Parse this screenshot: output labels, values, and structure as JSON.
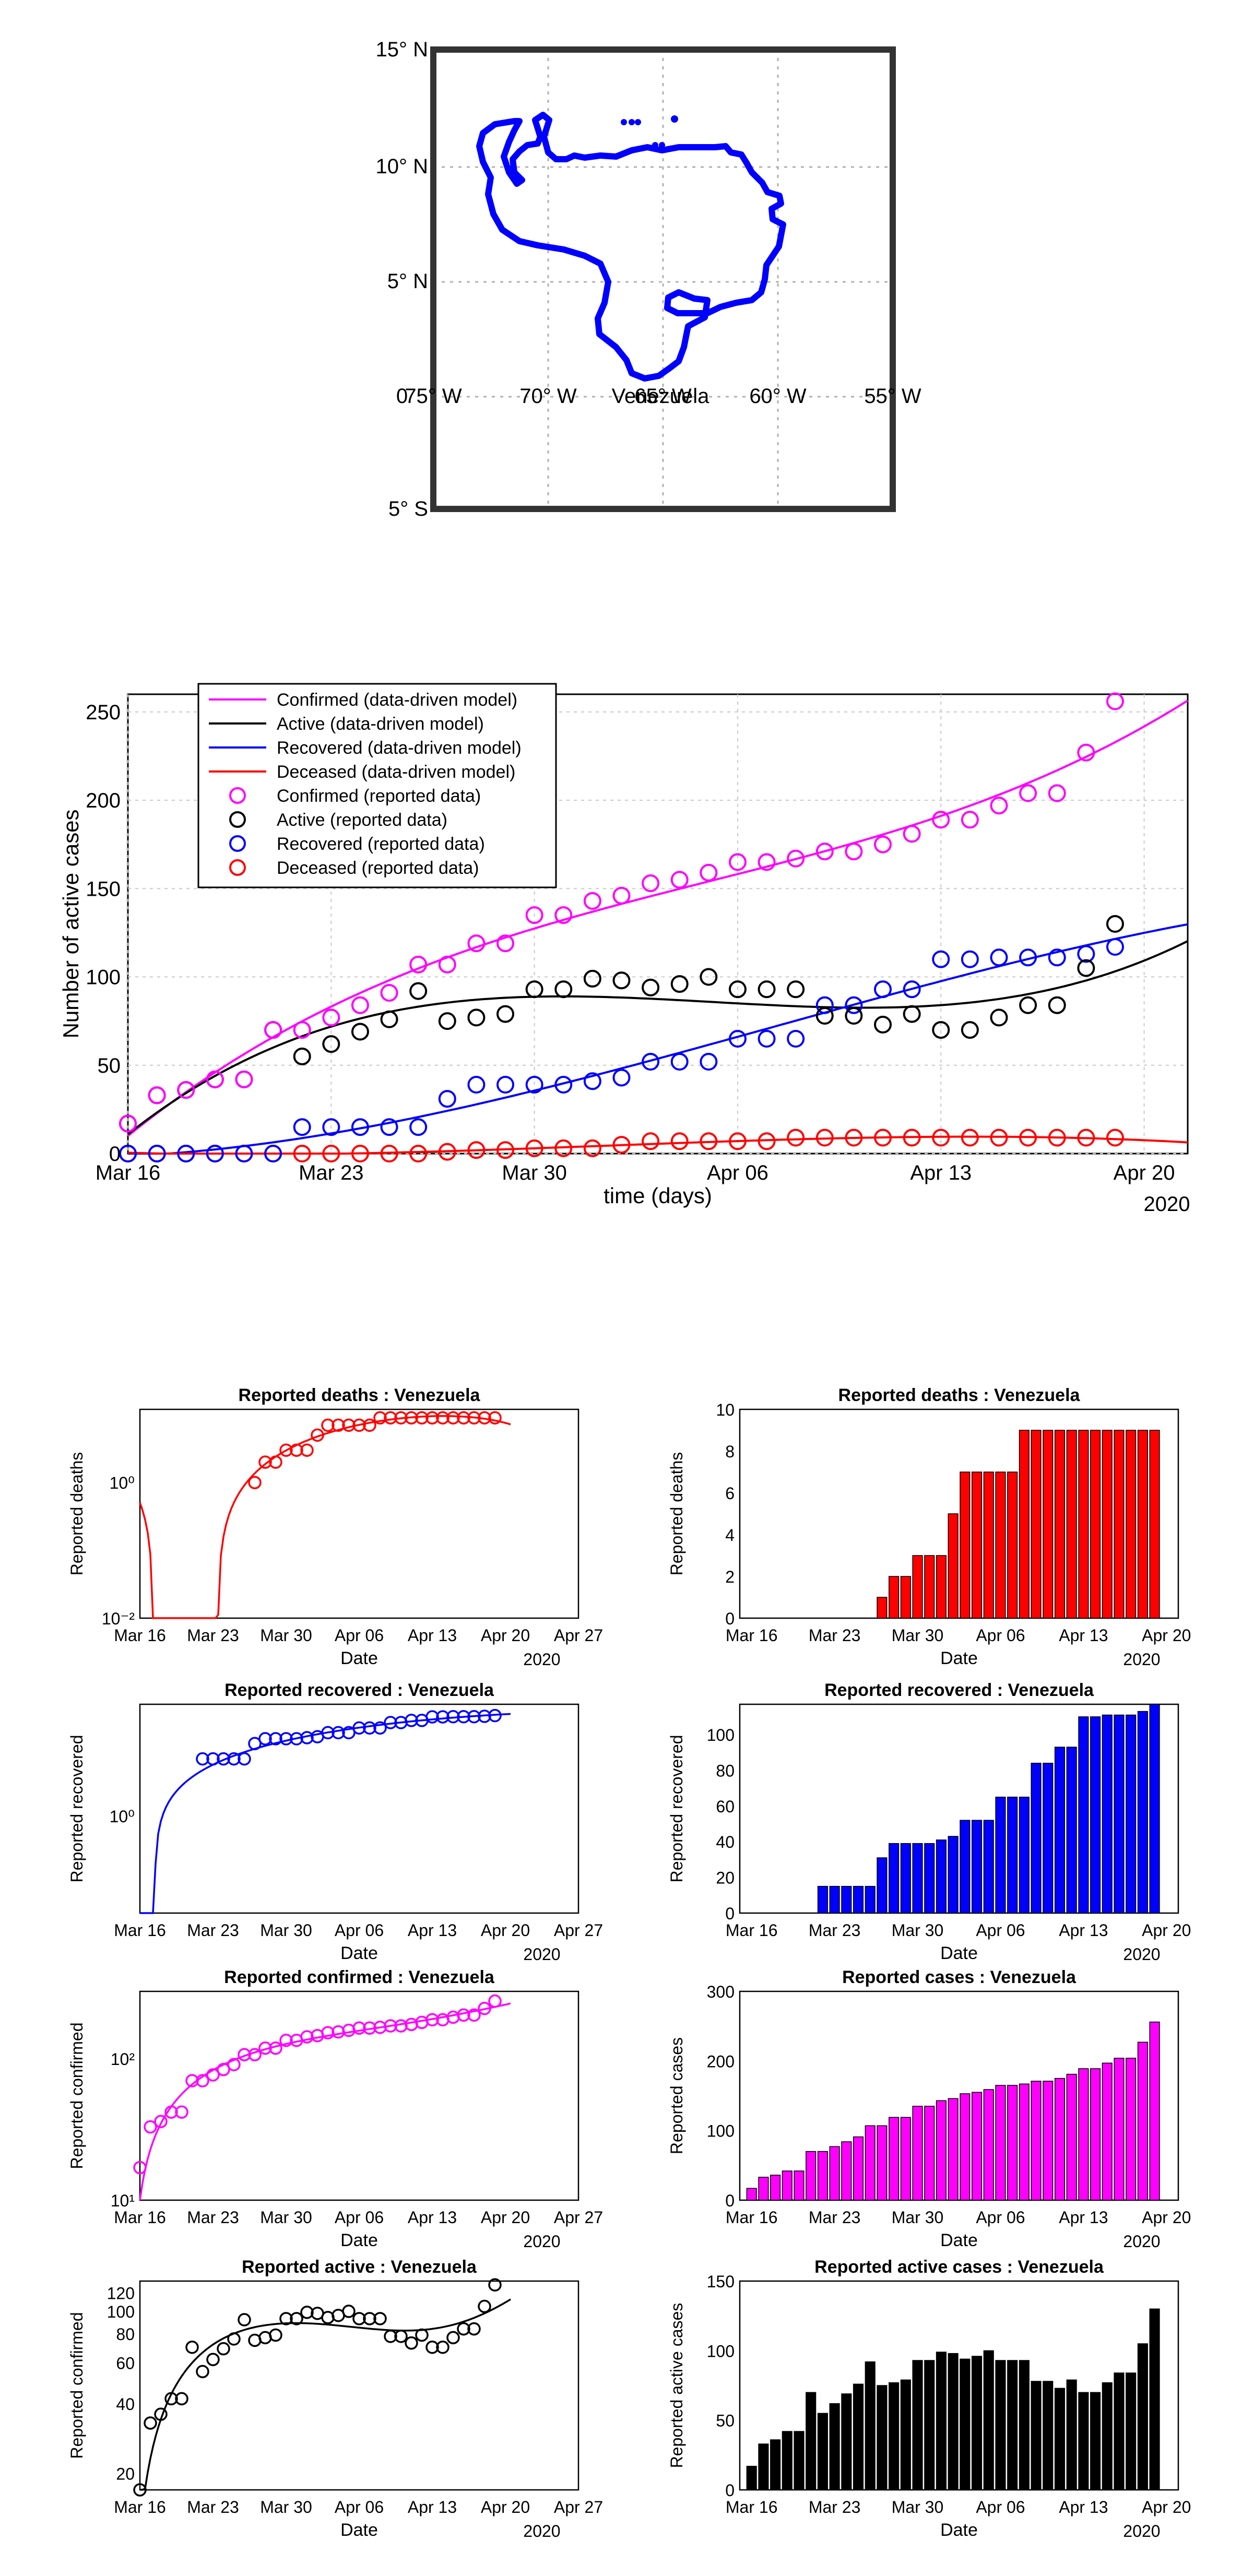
{
  "map": {
    "title": "Venezuela",
    "lat_ticks": [
      "15° N",
      "10° N",
      "5° N",
      "5° S"
    ],
    "lon_ticks": [
      "0",
      "75° W",
      "70° W",
      "65° W",
      "60° W",
      "55° W"
    ],
    "border_color": "#0000ff"
  },
  "colors": {
    "confirmed": "#ff00ff",
    "active": "#000000",
    "recovered": "#0000ff",
    "deceased": "#ff0000"
  },
  "chart_data": [
    {
      "id": "main",
      "type": "line",
      "title": "",
      "xlabel": "time (days)",
      "ylabel": "Number of active cases",
      "year_label": "2020",
      "xlim": [
        0,
        36.5
      ],
      "ylim": [
        0,
        260
      ],
      "yscale": "linear",
      "yticks": [
        0,
        50,
        100,
        150,
        200,
        250
      ],
      "xticks": [
        {
          "pos": 0,
          "label": "Mar 16"
        },
        {
          "pos": 7,
          "label": "Mar 23"
        },
        {
          "pos": 14,
          "label": "Mar 30"
        },
        {
          "pos": 21,
          "label": "Apr 06"
        },
        {
          "pos": 28,
          "label": "Apr 13"
        },
        {
          "pos": 35,
          "label": "Apr 20"
        }
      ],
      "legend": [
        "Confirmed (data-driven model)",
        "Active (data-driven model)",
        "Recovered (data-driven model)",
        "Deceased (data-driven model)",
        "Confirmed (reported data)",
        "Active (reported data)",
        "Recovered (reported data)",
        "Deceased  (reported data)"
      ],
      "legend_position": "top-left",
      "days": [
        0,
        1,
        2,
        3,
        4,
        5,
        6,
        7,
        8,
        9,
        10,
        11,
        12,
        13,
        14,
        15,
        16,
        17,
        18,
        19,
        20,
        21,
        22,
        23,
        24,
        25,
        26,
        27,
        28,
        29,
        30,
        31,
        32,
        33,
        34
      ],
      "series": [
        {
          "name": "Confirmed (reported data)",
          "key": "confirmed",
          "values": [
            17,
            33,
            36,
            42,
            42,
            70,
            70,
            77,
            84,
            91,
            107,
            107,
            119,
            119,
            135,
            135,
            143,
            146,
            153,
            155,
            159,
            165,
            165,
            167,
            171,
            171,
            175,
            181,
            189,
            189,
            197,
            204,
            204,
            227,
            256
          ]
        },
        {
          "name": "Active (reported data)",
          "key": "active",
          "values": [
            17,
            33,
            36,
            42,
            42,
            70,
            55,
            62,
            69,
            76,
            92,
            75,
            77,
            79,
            93,
            93,
            99,
            98,
            94,
            96,
            100,
            93,
            93,
            93,
            78,
            78,
            73,
            79,
            70,
            70,
            77,
            84,
            84,
            105,
            130
          ]
        },
        {
          "name": "Recovered (reported data)",
          "key": "recovered",
          "values": [
            0,
            0,
            0,
            0,
            0,
            0,
            15,
            15,
            15,
            15,
            15,
            31,
            39,
            39,
            39,
            39,
            41,
            43,
            52,
            52,
            52,
            65,
            65,
            65,
            84,
            84,
            93,
            93,
            110,
            110,
            111,
            111,
            111,
            113,
            117
          ]
        },
        {
          "name": "Deceased  (reported data)",
          "key": "deceased",
          "values": [
            0,
            0,
            0,
            0,
            0,
            0,
            0,
            0,
            0,
            0,
            0,
            1,
            2,
            2,
            3,
            3,
            3,
            5,
            7,
            7,
            7,
            7,
            7,
            9,
            9,
            9,
            9,
            9,
            9,
            9,
            9,
            9,
            9,
            9,
            9
          ]
        }
      ]
    },
    {
      "id": "deaths_log",
      "type": "scatter",
      "title": "Reported deaths : Venezuela",
      "xlabel": "Date",
      "ylabel": "Reported deaths",
      "year_label": "2020",
      "yscale": "log",
      "ytick_labels": [
        {
          "v": 0.01,
          "label": "10⁻²"
        },
        {
          "v": 1,
          "label": "10⁰"
        }
      ],
      "ylim": [
        0.01,
        12
      ],
      "series_key": "deceased",
      "xlim": [
        0,
        42
      ]
    },
    {
      "id": "deaths_bar",
      "type": "bar",
      "title": "Reported deaths : Venezuela",
      "xlabel": "Date",
      "ylabel": "Reported deaths",
      "year_label": "2020",
      "yticks": [
        0,
        2,
        4,
        6,
        8,
        10
      ],
      "ylim": [
        0,
        10
      ],
      "series_key": "deceased"
    },
    {
      "id": "recovered_log",
      "type": "scatter",
      "title": "Reported recovered : Venezuela",
      "xlabel": "Date",
      "ylabel": "Reported recovered",
      "year_label": "2020",
      "yscale": "log",
      "ytick_labels": [
        {
          "v": 1,
          "label": "10⁰"
        }
      ],
      "ylim": [
        0.01,
        200
      ],
      "series_key": "recovered",
      "xlim": [
        0,
        42
      ]
    },
    {
      "id": "recovered_bar",
      "type": "bar",
      "title": "Reported recovered : Venezuela",
      "xlabel": "Date",
      "ylabel": "Reported recovered",
      "year_label": "2020",
      "yticks": [
        0,
        20,
        40,
        60,
        80,
        100
      ],
      "ylim": [
        0,
        117
      ],
      "series_key": "recovered"
    },
    {
      "id": "confirmed_log",
      "type": "scatter",
      "title": "Reported confirmed : Venezuela",
      "xlabel": "Date",
      "ylabel": "Reported confirmed",
      "year_label": "2020",
      "yscale": "log",
      "ytick_labels": [
        {
          "v": 10,
          "label": "10¹"
        },
        {
          "v": 100,
          "label": "10²"
        }
      ],
      "ylim": [
        10,
        300
      ],
      "series_key": "confirmed",
      "xlim": [
        0,
        42
      ]
    },
    {
      "id": "confirmed_bar",
      "type": "bar",
      "title": "Reported cases : Venezuela",
      "xlabel": "Date",
      "ylabel": "Reported cases",
      "year_label": "2020",
      "yticks": [
        0,
        100,
        200,
        300
      ],
      "ylim": [
        0,
        300
      ],
      "series_key": "confirmed"
    },
    {
      "id": "active_log",
      "type": "scatter",
      "title": "Reported active : Venezuela",
      "xlabel": "Date",
      "ylabel": "Reported confirmed",
      "year_label": "2020",
      "yscale": "log",
      "ytick_labels": [
        {
          "v": 20,
          "label": "20"
        },
        {
          "v": 40,
          "label": "40"
        },
        {
          "v": 60,
          "label": "60"
        },
        {
          "v": 80,
          "label": "80"
        },
        {
          "v": 100,
          "label": "100"
        },
        {
          "v": 120,
          "label": "120"
        }
      ],
      "ylim": [
        17,
        135
      ],
      "series_key": "active",
      "xlim": [
        0,
        42
      ]
    },
    {
      "id": "active_bar",
      "type": "bar",
      "title": "Reported active cases : Venezuela",
      "xlabel": "Date",
      "ylabel": "Reported active cases",
      "year_label": "2020",
      "yticks": [
        0,
        50,
        100,
        150
      ],
      "ylim": [
        0,
        150
      ],
      "series_key": "active"
    }
  ],
  "small_xticks_log": [
    "Mar 16",
    "Mar 23",
    "Mar 30",
    "Apr 06",
    "Apr 13",
    "Apr 20",
    "Apr 27"
  ],
  "small_xticks_bar": [
    "Mar 16",
    "Mar 23",
    "Mar 30",
    "Apr 06",
    "Apr 13",
    "Apr 20"
  ]
}
